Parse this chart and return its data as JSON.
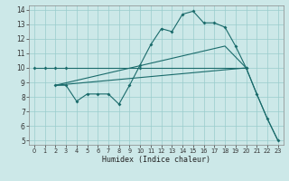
{
  "xlabel": "Humidex (Indice chaleur)",
  "bg_color": "#cce8e8",
  "grid_color": "#99cccc",
  "line_color": "#1a6b6b",
  "xlim": [
    -0.5,
    23.5
  ],
  "ylim": [
    4.7,
    14.3
  ],
  "xticks": [
    0,
    1,
    2,
    3,
    4,
    5,
    6,
    7,
    8,
    9,
    10,
    11,
    12,
    13,
    14,
    15,
    16,
    17,
    18,
    19,
    20,
    21,
    22,
    23
  ],
  "yticks": [
    5,
    6,
    7,
    8,
    9,
    10,
    11,
    12,
    13,
    14
  ],
  "line1_x": [
    0,
    1,
    2,
    3,
    10,
    20
  ],
  "line1_y": [
    10,
    10,
    10,
    10,
    10,
    10
  ],
  "line2_x": [
    2,
    3,
    4,
    5,
    6,
    7,
    8,
    9,
    10,
    11,
    12,
    13,
    14,
    15,
    16,
    17,
    18,
    19,
    20,
    21,
    22,
    23
  ],
  "line2_y": [
    8.8,
    8.8,
    7.7,
    8.2,
    8.2,
    8.2,
    7.5,
    8.8,
    10.2,
    11.6,
    12.7,
    12.5,
    13.7,
    13.9,
    13.1,
    13.1,
    12.8,
    11.5,
    10.0,
    8.2,
    6.5,
    5.0
  ],
  "line3_x": [
    2,
    20,
    21,
    22,
    23
  ],
  "line3_y": [
    8.8,
    10.0,
    8.2,
    6.5,
    5.0
  ],
  "line4_x": [
    2,
    18,
    20
  ],
  "line4_y": [
    8.8,
    11.5,
    10.0
  ]
}
